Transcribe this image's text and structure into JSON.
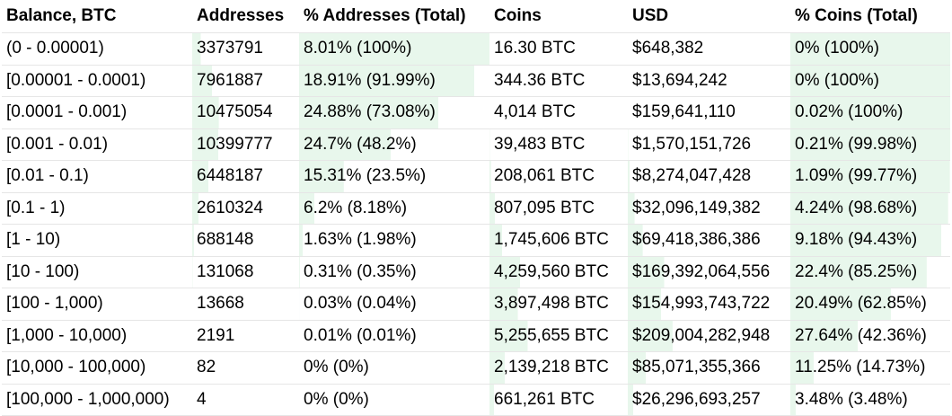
{
  "bar_color": "#e8f7ec",
  "headers": [
    "Balance, BTC",
    "Addresses",
    "% Addresses (Total)",
    "Coins",
    "USD",
    "% Coins (Total)"
  ],
  "rows": [
    {
      "balance": "(0 - 0.00001)",
      "addresses": "3373791",
      "pct_addresses": "8.01% (100%)",
      "coins": "16.30 BTC",
      "usd": "$648,382",
      "pct_coins": "0% (100%)",
      "addr_share": 0.08,
      "addr_cum": 1.0,
      "coin_share": 0.0,
      "coin_cum": 1.0
    },
    {
      "balance": "[0.00001 - 0.0001)",
      "addresses": "7961887",
      "pct_addresses": "18.91% (91.99%)",
      "coins": "344.36 BTC",
      "usd": "$13,694,242",
      "pct_coins": "0% (100%)",
      "addr_share": 0.189,
      "addr_cum": 0.92,
      "coin_share": 0.0,
      "coin_cum": 1.0
    },
    {
      "balance": "[0.0001 - 0.001)",
      "addresses": "10475054",
      "pct_addresses": "24.88% (73.08%)",
      "coins": "4,014 BTC",
      "usd": "$159,641,110",
      "pct_coins": "0.02% (100%)",
      "addr_share": 0.249,
      "addr_cum": 0.731,
      "coin_share": 0.0002,
      "coin_cum": 1.0
    },
    {
      "balance": "[0.001 - 0.01)",
      "addresses": "10399777",
      "pct_addresses": "24.7% (48.2%)",
      "coins": "39,483 BTC",
      "usd": "$1,570,151,726",
      "pct_coins": "0.21% (99.98%)",
      "addr_share": 0.247,
      "addr_cum": 0.482,
      "coin_share": 0.0021,
      "coin_cum": 0.9998
    },
    {
      "balance": "[0.01 - 0.1)",
      "addresses": "6448187",
      "pct_addresses": "15.31% (23.5%)",
      "coins": "208,061 BTC",
      "usd": "$8,274,047,428",
      "pct_coins": "1.09% (99.77%)",
      "addr_share": 0.153,
      "addr_cum": 0.235,
      "coin_share": 0.011,
      "coin_cum": 0.998
    },
    {
      "balance": "[0.1 - 1)",
      "addresses": "2610324",
      "pct_addresses": "6.2% (8.18%)",
      "coins": "807,095 BTC",
      "usd": "$32,096,149,382",
      "pct_coins": "4.24% (98.68%)",
      "addr_share": 0.062,
      "addr_cum": 0.082,
      "coin_share": 0.042,
      "coin_cum": 0.987
    },
    {
      "balance": "[1 - 10)",
      "addresses": "688148",
      "pct_addresses": "1.63% (1.98%)",
      "coins": "1,745,606 BTC",
      "usd": "$69,418,386,386",
      "pct_coins": "9.18% (94.43%)",
      "addr_share": 0.016,
      "addr_cum": 0.02,
      "coin_share": 0.092,
      "coin_cum": 0.944
    },
    {
      "balance": "[10 - 100)",
      "addresses": "131068",
      "pct_addresses": "0.31% (0.35%)",
      "coins": "4,259,560 BTC",
      "usd": "$169,392,064,556",
      "pct_coins": "22.4% (85.25%)",
      "addr_share": 0.003,
      "addr_cum": 0.004,
      "coin_share": 0.224,
      "coin_cum": 0.853
    },
    {
      "balance": "[100 - 1,000)",
      "addresses": "13668",
      "pct_addresses": "0.03% (0.04%)",
      "coins": "3,897,498 BTC",
      "usd": "$154,993,743,722",
      "pct_coins": "20.49% (62.85%)",
      "addr_share": 0.0003,
      "addr_cum": 0.0004,
      "coin_share": 0.205,
      "coin_cum": 0.629
    },
    {
      "balance": "[1,000 - 10,000)",
      "addresses": "2191",
      "pct_addresses": "0.01% (0.01%)",
      "coins": "5,255,655 BTC",
      "usd": "$209,004,282,948",
      "pct_coins": "27.64% (42.36%)",
      "addr_share": 0.0001,
      "addr_cum": 0.0001,
      "coin_share": 0.276,
      "coin_cum": 0.424
    },
    {
      "balance": "[10,000 - 100,000)",
      "addresses": "82",
      "pct_addresses": "0% (0%)",
      "coins": "2,139,218 BTC",
      "usd": "$85,071,355,366",
      "pct_coins": "11.25% (14.73%)",
      "addr_share": 0.0,
      "addr_cum": 0.0,
      "coin_share": 0.113,
      "coin_cum": 0.147
    },
    {
      "balance": "[100,000 - 1,000,000)",
      "addresses": "4",
      "pct_addresses": "0% (0%)",
      "coins": "661,261 BTC",
      "usd": "$26,296,693,257",
      "pct_coins": "3.48% (3.48%)",
      "addr_share": 0.0,
      "addr_cum": 0.0,
      "coin_share": 0.035,
      "coin_cum": 0.035
    }
  ]
}
